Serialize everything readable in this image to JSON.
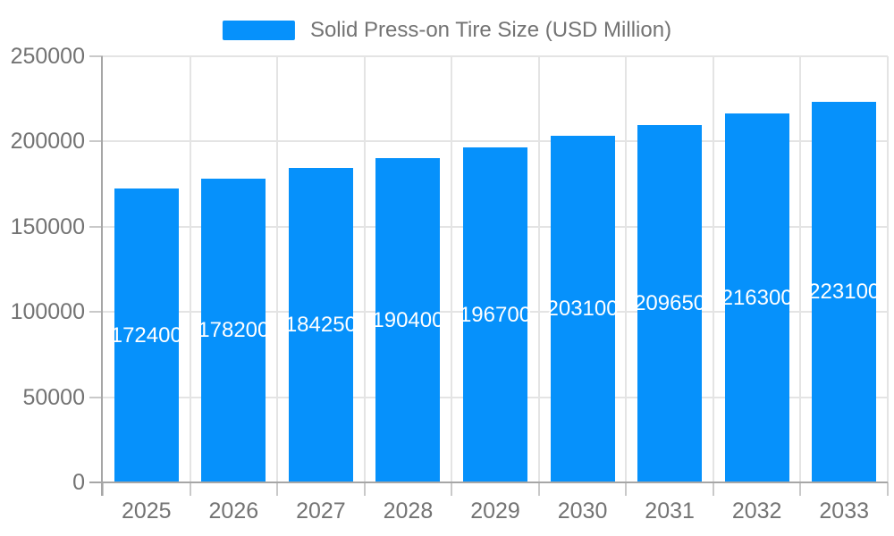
{
  "legend": {
    "label": "Solid Press-on Tire Size (USD Million)"
  },
  "chart_data": {
    "type": "bar",
    "title": "",
    "series_name": "Solid Press-on Tire Size (USD Million)",
    "categories": [
      "2025",
      "2026",
      "2027",
      "2028",
      "2029",
      "2030",
      "2031",
      "2032",
      "2033"
    ],
    "values": [
      172400,
      178200,
      184250,
      190400,
      196700,
      203100,
      209650,
      216300,
      223100
    ],
    "value_labels": [
      "172400",
      "178200",
      "184250",
      "190400",
      "196700",
      "203100",
      "209650",
      "216300",
      "223100"
    ],
    "xlabel": "",
    "ylabel": "",
    "ylim": [
      0,
      250000
    ],
    "y_ticks": [
      0,
      50000,
      100000,
      150000,
      200000,
      250000
    ],
    "grid": true,
    "legend_position": "top-center",
    "value_label_position": "inside-middle",
    "colors": {
      "bar": "#0691fb",
      "value_label": "#ffffff",
      "axis_text": "#737373",
      "grid_line": "#e4e4e4",
      "axis_line": "#a6a6a6",
      "tick_line": "#c9c9c9",
      "background": "#ffffff"
    }
  }
}
